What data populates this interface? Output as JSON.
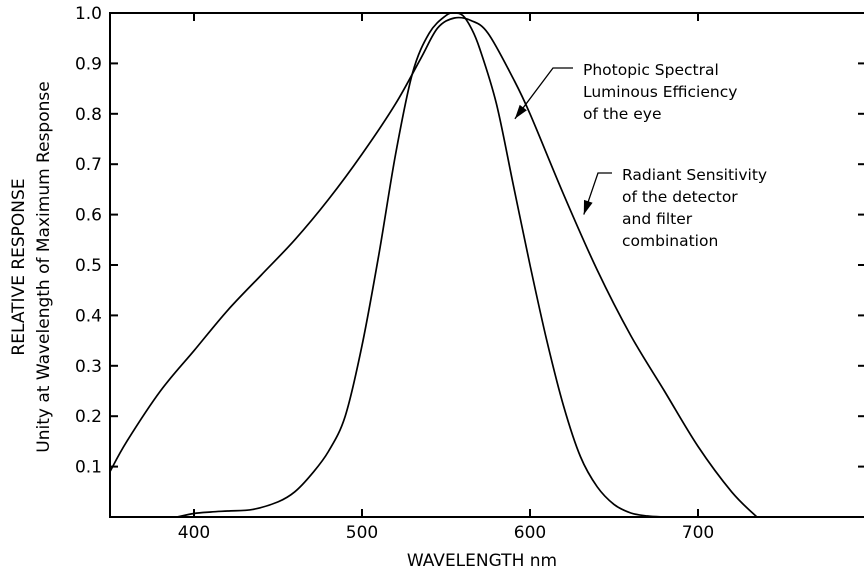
{
  "chart_data": {
    "type": "line",
    "xlabel": "WAVELENGTH nm",
    "ylabel_line1": "RELATIVE RESPONSE",
    "ylabel_line2": "Unity at Wavelength of Maximum Response",
    "xlim": [
      350,
      800
    ],
    "ylim": [
      0,
      1.0
    ],
    "x_ticks": [
      400,
      500,
      600,
      700
    ],
    "y_ticks": [
      0.1,
      0.2,
      0.3,
      0.4,
      0.5,
      0.6,
      0.7,
      0.8,
      0.9,
      1.0
    ],
    "x_tick_labels": [
      "400",
      "500",
      "600",
      "700"
    ],
    "y_tick_labels": [
      "0.1",
      "0.2",
      "0.3",
      "0.4",
      "0.5",
      "0.6",
      "0.7",
      "0.8",
      "0.9",
      "1.0"
    ],
    "grid": false,
    "series": [
      {
        "x": [
          350,
          360,
          380,
          400,
          420,
          440,
          460,
          480,
          500,
          520,
          535,
          545,
          555,
          565,
          575,
          590,
          600,
          620,
          640,
          660,
          680,
          700,
          720,
          735
        ],
        "y": [
          0.09,
          0.15,
          0.25,
          0.33,
          0.41,
          0.48,
          0.55,
          0.63,
          0.72,
          0.82,
          0.91,
          0.97,
          0.99,
          0.985,
          0.96,
          0.87,
          0.8,
          0.64,
          0.49,
          0.36,
          0.25,
          0.14,
          0.05,
          0.0
        ]
      },
      {
        "x": [
          390,
          400,
          410,
          420,
          435,
          450,
          460,
          470,
          480,
          490,
          500,
          510,
          520,
          530,
          540,
          550,
          555,
          560,
          565,
          570,
          580,
          590,
          600,
          610,
          620,
          630,
          640,
          650,
          660,
          670,
          680
        ],
        "y": [
          0.0,
          0.007,
          0.01,
          0.012,
          0.015,
          0.03,
          0.05,
          0.085,
          0.13,
          0.2,
          0.34,
          0.52,
          0.72,
          0.88,
          0.96,
          0.995,
          1.0,
          0.995,
          0.97,
          0.93,
          0.82,
          0.66,
          0.5,
          0.35,
          0.22,
          0.12,
          0.06,
          0.025,
          0.008,
          0.002,
          0.0
        ]
      }
    ],
    "annotations": [
      {
        "lines": [
          "Photopic Spectral",
          "Luminous Efficiency",
          "of the eye"
        ],
        "arrow_target": [
          591,
          0.79
        ]
      },
      {
        "lines": [
          "Radiant Sensitivity",
          "of the detector",
          "and filter",
          "combination"
        ],
        "arrow_target": [
          632,
          0.6
        ]
      }
    ]
  }
}
